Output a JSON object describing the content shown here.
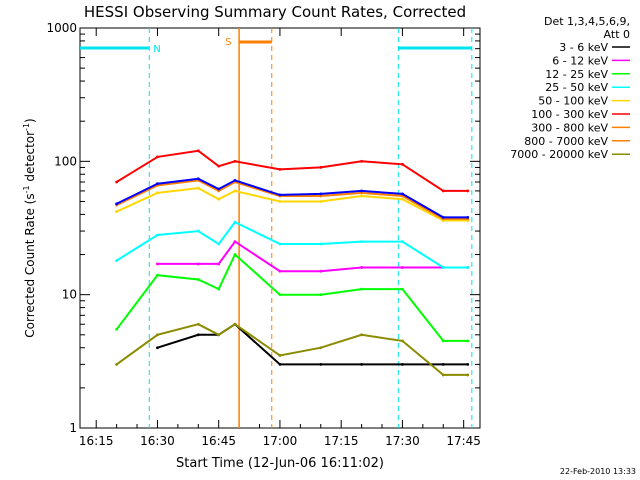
{
  "chart_data": {
    "type": "line",
    "title": "HESSI Observing Summary Count Rates, Corrected",
    "xlabel": "Start Time (12-Jun-06 16:11:02)",
    "ylabel_parts": [
      "Corrected Count Rate (s",
      "-1",
      " detector",
      "-1",
      ")"
    ],
    "ylabel": "Corrected Count Rate (s-1 detector-1)",
    "yscale": "log",
    "ylim": [
      1,
      1000
    ],
    "xlim_minutes": [
      16.2,
      17.8
    ],
    "x_tick_labels": [
      "16:15",
      "16:30",
      "16:45",
      "17:00",
      "17:15",
      "17:30",
      "17:45"
    ],
    "y_tick_labels": [
      "1",
      "10",
      "100",
      "1000"
    ],
    "legend_header": [
      "Det 1,3,4,5,6,9,",
      "Att 0"
    ],
    "legend_position": "top-right, outside plot",
    "footer": "22-Feb-2010 13:33",
    "annotations": [
      {
        "label": "N",
        "meaning": "night",
        "color": "#00e5ee"
      },
      {
        "label": "S",
        "meaning": "SAA",
        "color": "#ff7f00"
      }
    ],
    "night_intervals": [
      [
        "16:11",
        "16:28"
      ],
      [
        "17:29",
        "17:47"
      ]
    ],
    "saa_interval": [
      "16:50",
      "16:58"
    ],
    "sample_times": [
      "16:20",
      "16:30",
      "16:40",
      "16:45",
      "16:49",
      "17:00",
      "17:10",
      "17:20",
      "17:30",
      "17:40",
      "17:46"
    ],
    "series": [
      {
        "name": "3 - 6 keV",
        "color": "#000000",
        "values": [
          null,
          4,
          5,
          5,
          6,
          3,
          3,
          3,
          3,
          3,
          3
        ]
      },
      {
        "name": "6 - 12 keV",
        "color": "#ff00ff",
        "values": [
          null,
          17,
          17,
          17,
          25,
          15,
          15,
          16,
          16,
          16,
          16
        ]
      },
      {
        "name": "12 - 25 keV",
        "color": "#00ff00",
        "values": [
          5.5,
          14,
          13,
          11,
          20,
          10,
          10,
          11,
          11,
          4.5,
          4.5
        ]
      },
      {
        "name": "25 - 50 keV",
        "color": "#00ffff",
        "values": [
          18,
          28,
          30,
          24,
          35,
          24,
          24,
          25,
          25,
          16,
          16
        ]
      },
      {
        "name": "50 - 100 keV",
        "color": "#ffd700",
        "values": [
          42,
          58,
          63,
          52,
          60,
          50,
          50,
          55,
          52,
          36,
          36
        ]
      },
      {
        "name": "100 - 300 keV",
        "color": "#ff0000",
        "values": [
          70,
          108,
          120,
          92,
          100,
          87,
          90,
          100,
          95,
          60,
          60
        ]
      },
      {
        "name": "300 - 800 keV",
        "color": "#ff7f00",
        "values": [
          47,
          66,
          72,
          60,
          70,
          55,
          55,
          58,
          55,
          37,
          37
        ]
      },
      {
        "name": "800 - 7000 keV",
        "color": "#ff7f00",
        "values": [
          48,
          68,
          74,
          62,
          72,
          56,
          57,
          60,
          57,
          38,
          38
        ]
      },
      {
        "name": "7000 - 20000 keV",
        "color": "#8b8b00",
        "values": [
          3,
          5,
          6,
          5,
          6,
          3.5,
          4,
          5,
          4.5,
          2.5,
          2.5
        ]
      }
    ],
    "series_draw_colors": {
      "800 - 7000 keV": "#0000ff"
    }
  }
}
